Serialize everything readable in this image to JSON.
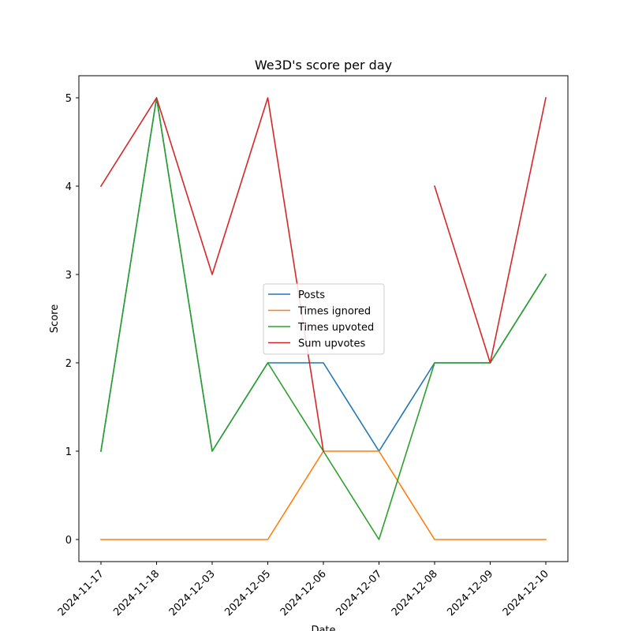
{
  "chart_data": {
    "type": "line",
    "title": "We3D's score per day",
    "xlabel": "Date",
    "ylabel": "Score",
    "categories": [
      "2024-11-17",
      "2024-11-18",
      "2024-12-03",
      "2024-12-05",
      "2024-12-06",
      "2024-12-07",
      "2024-12-08",
      "2024-12-09",
      "2024-12-10"
    ],
    "ylim": [
      -0.25,
      5.25
    ],
    "yticks": [
      0,
      1,
      2,
      3,
      4,
      5
    ],
    "grid": false,
    "legend_position": "center",
    "series": [
      {
        "name": "Posts",
        "color": "#1f77b4",
        "values": [
          1,
          5,
          1,
          2,
          2,
          1,
          2,
          2,
          3
        ]
      },
      {
        "name": "Times ignored",
        "color": "#ff7f0e",
        "values": [
          0,
          0,
          0,
          0,
          1,
          1,
          0,
          0,
          0
        ]
      },
      {
        "name": "Times upvoted",
        "color": "#2ca02c",
        "values": [
          1,
          5,
          1,
          2,
          1,
          0,
          2,
          2,
          3
        ]
      },
      {
        "name": "Sum upvotes",
        "color": "#d62728",
        "values": [
          4,
          5,
          3,
          5,
          1,
          null,
          4,
          2,
          5
        ]
      }
    ]
  }
}
